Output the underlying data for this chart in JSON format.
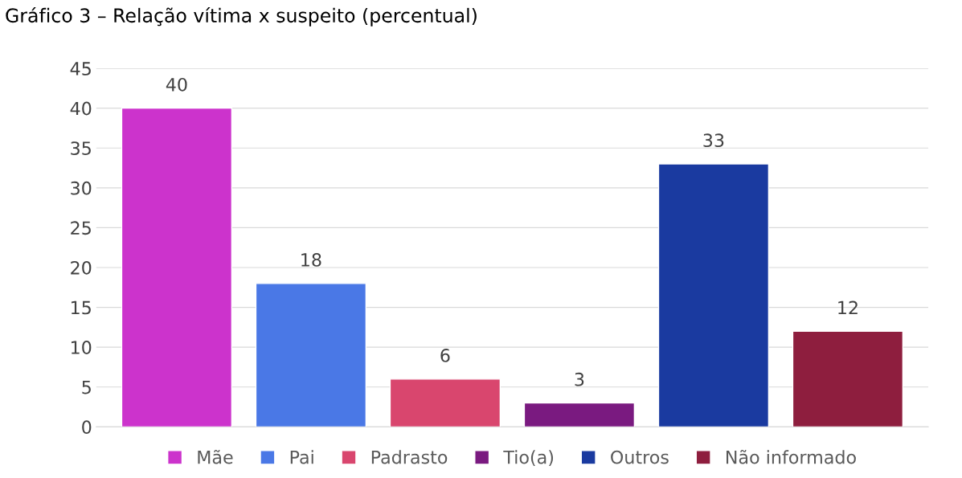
{
  "chart_data": {
    "type": "bar",
    "title": "Gráfico 3 – Relação vítima x suspeito (percentual)",
    "categories": [
      null,
      null,
      null,
      null,
      null,
      null
    ],
    "series": [
      {
        "name": "Mãe",
        "color": "#cc33cc",
        "values": [
          40,
          null,
          null,
          null,
          null,
          null
        ]
      },
      {
        "name": "Pai",
        "color": "#4a78e6",
        "values": [
          null,
          18,
          null,
          null,
          null,
          null
        ]
      },
      {
        "name": "Padrasto",
        "color": "#d9466e",
        "values": [
          null,
          null,
          6,
          null,
          null,
          null
        ]
      },
      {
        "name": "Tio(a)",
        "color": "#7a1a80",
        "values": [
          null,
          null,
          null,
          3,
          null,
          null
        ]
      },
      {
        "name": "Outros",
        "color": "#1a3aa0",
        "values": [
          null,
          null,
          null,
          null,
          33,
          null
        ]
      },
      {
        "name": "Não informado",
        "color": "#8e1e3e",
        "values": [
          null,
          null,
          null,
          null,
          null,
          12
        ]
      }
    ],
    "ylim": [
      0,
      45
    ],
    "yticks": [
      0,
      5,
      10,
      15,
      20,
      25,
      30,
      35,
      40,
      45
    ],
    "grid": "y",
    "legend": "bottom",
    "data_labels": true
  }
}
